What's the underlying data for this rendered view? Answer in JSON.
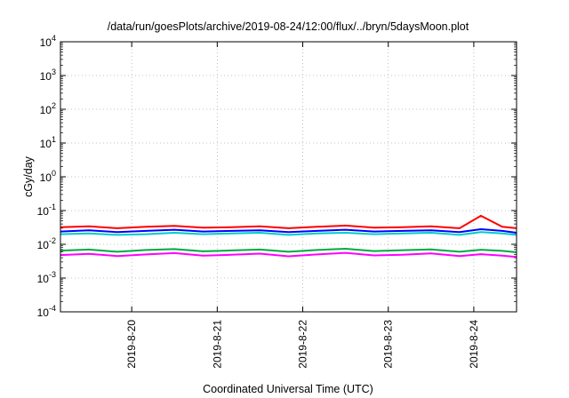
{
  "chart_data": {
    "type": "line",
    "title": "/data/run/goesPlots/archive/2019-08-24/12:00/flux/../bryn/5daysMoon.plot",
    "xlabel": "Coordinated Universal Time (UTC)",
    "ylabel": "cGy/day",
    "yscale": "log",
    "ylim": [
      0.0001,
      10000
    ],
    "yticks": [
      {
        "base": "10",
        "exp": "4"
      },
      {
        "base": "10",
        "exp": "3"
      },
      {
        "base": "10",
        "exp": "2"
      },
      {
        "base": "10",
        "exp": "1"
      },
      {
        "base": "10",
        "exp": "0"
      },
      {
        "base": "10",
        "exp": "-1"
      },
      {
        "base": "10",
        "exp": "-2"
      },
      {
        "base": "10",
        "exp": "-3"
      },
      {
        "base": "10",
        "exp": "-4"
      }
    ],
    "xlim": [
      "2019-08-19 04:00",
      "2019-08-24 12:00"
    ],
    "xticks": [
      {
        "date": "2019-08-20 00:00",
        "label": "2019-8-20"
      },
      {
        "date": "2019-08-21 00:00",
        "label": "2019-8-21"
      },
      {
        "date": "2019-08-22 00:00",
        "label": "2019-8-22"
      },
      {
        "date": "2019-08-23 00:00",
        "label": "2019-8-23"
      },
      {
        "date": "2019-08-24 00:00",
        "label": "2019-8-24"
      }
    ],
    "grid": true,
    "legend": "none",
    "series": [
      {
        "color": "#ff0000",
        "x": [
          "2019-08-19 04:00",
          "2019-08-19 12:00",
          "2019-08-19 20:00",
          "2019-08-20 04:00",
          "2019-08-20 12:00",
          "2019-08-20 20:00",
          "2019-08-21 04:00",
          "2019-08-21 12:00",
          "2019-08-21 20:00",
          "2019-08-22 04:00",
          "2019-08-22 12:00",
          "2019-08-22 20:00",
          "2019-08-23 04:00",
          "2019-08-23 12:00",
          "2019-08-23 20:00",
          "2019-08-24 02:00",
          "2019-08-24 08:00",
          "2019-08-24 12:00"
        ],
        "values": [
          0.032,
          0.034,
          0.03,
          0.033,
          0.035,
          0.031,
          0.032,
          0.034,
          0.03,
          0.033,
          0.036,
          0.031,
          0.032,
          0.034,
          0.03,
          0.07,
          0.033,
          0.03
        ]
      },
      {
        "color": "#0000ff",
        "x": [
          "2019-08-19 04:00",
          "2019-08-19 12:00",
          "2019-08-19 20:00",
          "2019-08-20 04:00",
          "2019-08-20 12:00",
          "2019-08-20 20:00",
          "2019-08-21 04:00",
          "2019-08-21 12:00",
          "2019-08-21 20:00",
          "2019-08-22 04:00",
          "2019-08-22 12:00",
          "2019-08-22 20:00",
          "2019-08-23 04:00",
          "2019-08-23 12:00",
          "2019-08-23 20:00",
          "2019-08-24 02:00",
          "2019-08-24 08:00",
          "2019-08-24 12:00"
        ],
        "values": [
          0.024,
          0.026,
          0.023,
          0.025,
          0.027,
          0.024,
          0.025,
          0.026,
          0.023,
          0.025,
          0.027,
          0.024,
          0.025,
          0.026,
          0.023,
          0.028,
          0.025,
          0.022
        ]
      },
      {
        "color": "#00cccc",
        "x": [
          "2019-08-19 04:00",
          "2019-08-19 12:00",
          "2019-08-19 20:00",
          "2019-08-20 04:00",
          "2019-08-20 12:00",
          "2019-08-20 20:00",
          "2019-08-21 04:00",
          "2019-08-21 12:00",
          "2019-08-21 20:00",
          "2019-08-22 04:00",
          "2019-08-22 12:00",
          "2019-08-22 20:00",
          "2019-08-23 04:00",
          "2019-08-23 12:00",
          "2019-08-23 20:00",
          "2019-08-24 02:00",
          "2019-08-24 08:00",
          "2019-08-24 12:00"
        ],
        "values": [
          0.02,
          0.021,
          0.019,
          0.02,
          0.022,
          0.02,
          0.021,
          0.022,
          0.019,
          0.021,
          0.022,
          0.02,
          0.021,
          0.022,
          0.019,
          0.023,
          0.021,
          0.019
        ]
      },
      {
        "color": "#00aa44",
        "x": [
          "2019-08-19 04:00",
          "2019-08-19 12:00",
          "2019-08-19 20:00",
          "2019-08-20 04:00",
          "2019-08-20 12:00",
          "2019-08-20 20:00",
          "2019-08-21 04:00",
          "2019-08-21 12:00",
          "2019-08-21 20:00",
          "2019-08-22 04:00",
          "2019-08-22 12:00",
          "2019-08-22 20:00",
          "2019-08-23 04:00",
          "2019-08-23 12:00",
          "2019-08-23 20:00",
          "2019-08-24 02:00",
          "2019-08-24 08:00",
          "2019-08-24 12:00"
        ],
        "values": [
          0.0065,
          0.007,
          0.006,
          0.0068,
          0.0072,
          0.0062,
          0.0066,
          0.007,
          0.006,
          0.0068,
          0.0074,
          0.0063,
          0.0067,
          0.0071,
          0.006,
          0.0069,
          0.0064,
          0.0058
        ]
      },
      {
        "color": "#ff00ff",
        "x": [
          "2019-08-19 04:00",
          "2019-08-19 12:00",
          "2019-08-19 20:00",
          "2019-08-20 04:00",
          "2019-08-20 12:00",
          "2019-08-20 20:00",
          "2019-08-21 04:00",
          "2019-08-21 12:00",
          "2019-08-21 20:00",
          "2019-08-22 04:00",
          "2019-08-22 12:00",
          "2019-08-22 20:00",
          "2019-08-23 04:00",
          "2019-08-23 12:00",
          "2019-08-23 20:00",
          "2019-08-24 02:00",
          "2019-08-24 08:00",
          "2019-08-24 12:00"
        ],
        "values": [
          0.0048,
          0.0052,
          0.0045,
          0.005,
          0.0055,
          0.0046,
          0.0049,
          0.0053,
          0.0044,
          0.005,
          0.0056,
          0.0047,
          0.0049,
          0.0054,
          0.0045,
          0.0051,
          0.0046,
          0.0042
        ]
      }
    ]
  }
}
